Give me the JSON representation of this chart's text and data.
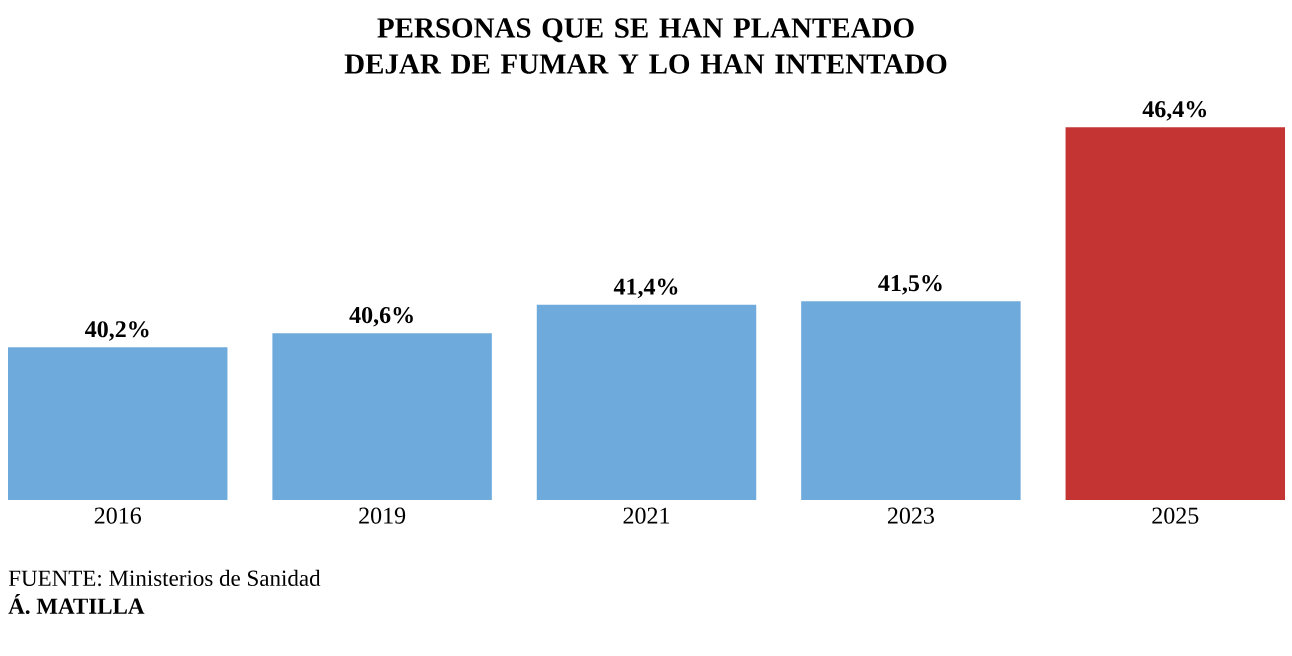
{
  "chart_data": {
    "type": "bar",
    "title": "PERSONAS QUE SE HAN PLANTEADO DEJAR DE FUMAR Y LO HAN INTENTADO",
    "categories": [
      "2016",
      "2019",
      "2021",
      "2023",
      "2025"
    ],
    "values": [
      40.2,
      40.6,
      41.4,
      41.5,
      46.4
    ],
    "colors": [
      "#6eaadb",
      "#6eaadb",
      "#6eaadb",
      "#6eaadb",
      "#c43432"
    ],
    "value_labels": [
      "40,2%",
      "40,6%",
      "41,4%",
      "41,5%",
      "46,4%"
    ],
    "ylim": [
      35.9,
      46.4
    ],
    "tick_labels": "x",
    "annotations": [
      "FUENTE: Ministerios de Sanidad",
      "Á. MATILLA"
    ]
  }
}
